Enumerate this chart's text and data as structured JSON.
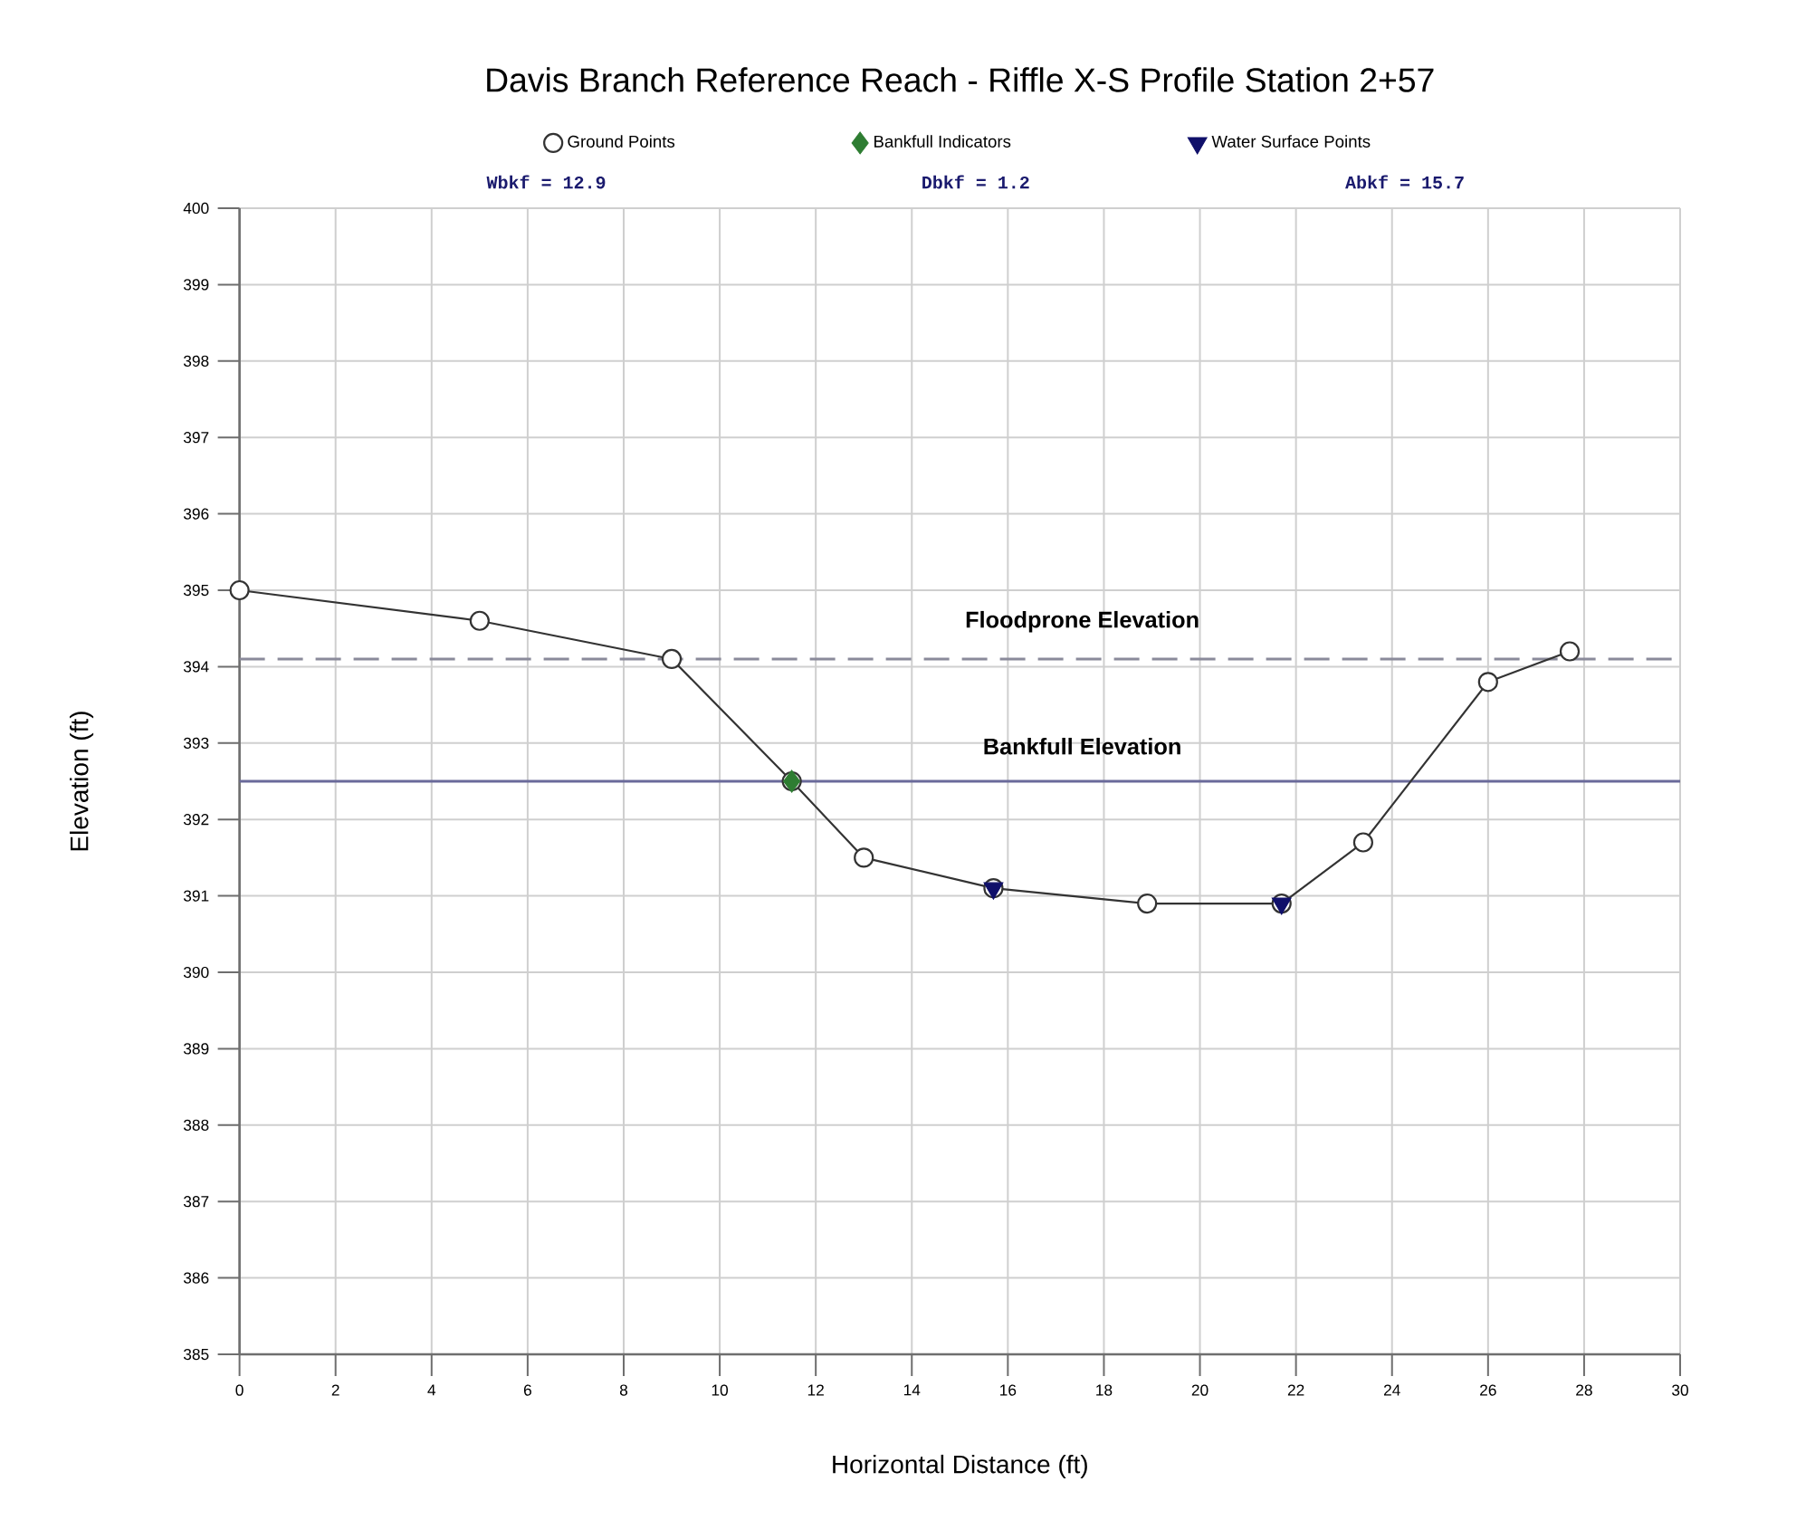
{
  "chart_data": {
    "type": "line",
    "title": "Davis Branch Reference Reach - Riffle X-S Profile Station 2+57",
    "xlabel": "Horizontal Distance (ft)",
    "ylabel": "Elevation (ft)",
    "annotations": [
      "Wbkf = 12.9",
      "Dbkf = 1.2",
      "Abkf = 15.7"
    ],
    "series": [
      {
        "name": "Ground Points",
        "marker": "circle",
        "color": "#333333",
        "x": [
          0,
          5.0,
          9.0,
          11.5,
          13.0,
          15.7,
          18.9,
          21.7,
          23.4,
          26.0,
          27.7
        ],
        "values": [
          395.0,
          394.6,
          394.1,
          392.5,
          391.5,
          391.1,
          390.9,
          390.9,
          391.7,
          393.8,
          394.2
        ]
      },
      {
        "name": "Bankfull Indicators",
        "type": "scatter",
        "marker": "diamond",
        "color": "#2e7d32",
        "x": [
          11.5
        ],
        "values": [
          392.5
        ]
      },
      {
        "name": "Water Surface Points",
        "type": "scatter",
        "marker": "triangle",
        "color": "#10106a",
        "x": [
          15.7,
          21.7
        ],
        "values": [
          391.1,
          390.9
        ]
      }
    ],
    "ref_lines": [
      {
        "axis": "y",
        "value": 394.1,
        "label": "Floodprone Elevation",
        "color": "#8a8a9a",
        "line_style": "dashed"
      },
      {
        "axis": "y",
        "value": 392.5,
        "label": "Bankfull Elevation",
        "color": "#6a6a9a",
        "line_style": "solid"
      }
    ],
    "xlim": [
      0,
      30
    ],
    "ylim": [
      385,
      400
    ],
    "xticks": [
      0,
      2,
      4,
      6,
      8,
      10,
      12,
      14,
      16,
      18,
      20,
      22,
      24,
      26,
      28,
      30
    ],
    "yticks": [
      385,
      386,
      387,
      388,
      389,
      390,
      391,
      392,
      393,
      394,
      395,
      396,
      397,
      398,
      399,
      400
    ],
    "grid": true,
    "legend": "top"
  }
}
